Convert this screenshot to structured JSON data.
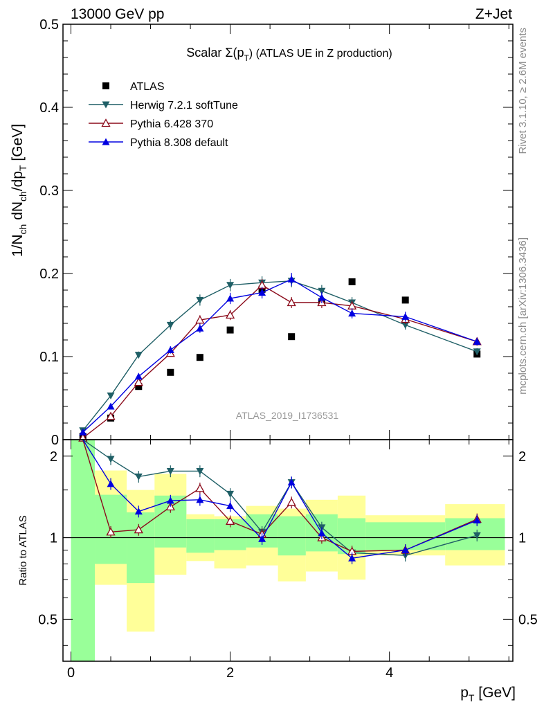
{
  "header": {
    "left": "13000 GeV pp",
    "right": "Z+Jet"
  },
  "side_labels": {
    "rivet": "Rivet 3.1.10, ≥ 2.6M events",
    "mcplots": "mcplots.cern.ch [arXiv:1306.3436]"
  },
  "analysis_id": "ATLAS_2019_I1736531",
  "colors": {
    "ATLAS": "#000000",
    "Herwig": "#1f5f66",
    "Pythia6": "#8b0a1a",
    "Pythia8": "#0000e0",
    "band_inner": "#99ff99",
    "band_outer": "#ffff99"
  },
  "chart_data": [
    {
      "type": "scatter",
      "panel": "main",
      "title_main": "Scalar Σ(p",
      "title_sub": "T",
      "title_tail": ") (ATLAS UE in Z production)",
      "ylabel": "1/N_ch dN_ch/dp_T [GeV]",
      "ylim": [
        0,
        0.5
      ],
      "yticks": [
        0,
        0.1,
        0.2,
        0.3,
        0.4,
        0.5
      ],
      "yticklabels": [
        "0",
        "0.1",
        "0.2",
        "0.3",
        "0.4",
        "0.5"
      ],
      "xlim": [
        -0.1,
        5.55
      ],
      "legend_position": "top-left",
      "series": [
        {
          "name": "ATLAS",
          "marker": "square",
          "x": [
            0.15,
            0.5,
            0.85,
            1.25,
            1.62,
            2.0,
            2.4,
            2.77,
            3.15,
            3.53,
            4.2,
            5.1
          ],
          "y": [
            0.004,
            0.026,
            0.064,
            0.081,
            0.099,
            0.132,
            0.181,
            0.124,
            0.166,
            0.19,
            0.168,
            0.103
          ]
        },
        {
          "name": "Herwig 7.2.1 softTune",
          "marker": "triangle-down",
          "x": [
            0.15,
            0.5,
            0.85,
            1.25,
            1.62,
            2.0,
            2.4,
            2.77,
            3.15,
            3.53,
            4.2,
            5.1
          ],
          "y": [
            0.011,
            0.053,
            0.102,
            0.138,
            0.168,
            0.186,
            0.189,
            0.191,
            0.179,
            0.165,
            0.138,
            0.106
          ]
        },
        {
          "name": "Pythia 6.428 370",
          "marker": "triangle-up-open",
          "x": [
            0.15,
            0.5,
            0.85,
            1.25,
            1.62,
            2.0,
            2.4,
            2.77,
            3.15,
            3.53,
            4.2,
            5.1
          ],
          "y": [
            0.002,
            0.028,
            0.069,
            0.104,
            0.144,
            0.15,
            0.186,
            0.165,
            0.165,
            0.161,
            0.145,
            0.118
          ]
        },
        {
          "name": "Pythia 8.308 default",
          "marker": "triangle-up",
          "x": [
            0.15,
            0.5,
            0.85,
            1.25,
            1.62,
            2.0,
            2.4,
            2.77,
            3.15,
            3.53,
            4.2,
            5.1
          ],
          "y": [
            0.009,
            0.04,
            0.076,
            0.108,
            0.134,
            0.17,
            0.177,
            0.193,
            0.171,
            0.152,
            0.148,
            0.118
          ]
        }
      ]
    },
    {
      "type": "line",
      "panel": "ratio",
      "ylabel": "Ratio to ATLAS",
      "xlabel_main": "p",
      "xlabel_sub": "T",
      "xlabel_tail": " [GeV]",
      "log_y": true,
      "ylim": [
        0.35,
        2.3
      ],
      "yticks": [
        0.5,
        1,
        2
      ],
      "yticklabels": [
        "0.5",
        "1",
        "2"
      ],
      "xlim": [
        -0.1,
        5.55
      ],
      "xticks": [
        0,
        2,
        4
      ],
      "xticklabels": [
        "0",
        "2",
        "4"
      ],
      "bands": {
        "edges": [
          0,
          0.3,
          0.7,
          1.05,
          1.45,
          1.8,
          2.2,
          2.6,
          2.95,
          3.35,
          3.7,
          4.7,
          5.45
        ],
        "outer_low": [
          0.3,
          0.67,
          0.45,
          0.73,
          0.82,
          0.77,
          0.79,
          0.69,
          0.75,
          0.7,
          0.86,
          0.79
        ],
        "outer_high": [
          3.0,
          1.77,
          1.5,
          1.72,
          1.22,
          1.2,
          1.31,
          1.28,
          1.38,
          1.43,
          1.21,
          1.33
        ],
        "inner_low": [
          0.3,
          0.8,
          0.68,
          0.92,
          0.88,
          0.9,
          0.92,
          0.86,
          0.89,
          0.87,
          0.9,
          0.9
        ],
        "inner_high": [
          3.0,
          1.44,
          1.24,
          1.43,
          1.17,
          1.17,
          1.22,
          1.2,
          1.22,
          1.18,
          1.14,
          1.18
        ]
      },
      "series": [
        {
          "name": "Herwig 7.2.1 softTune",
          "x": [
            0.5,
            0.85,
            1.25,
            1.62,
            2.0,
            2.4,
            2.77,
            3.15,
            3.53,
            4.2,
            5.1
          ],
          "y": [
            1.95,
            1.68,
            1.76,
            1.76,
            1.45,
            1.05,
            1.6,
            1.09,
            0.88,
            0.86,
            1.02
          ]
        },
        {
          "name": "Pythia 6.428 370",
          "x": [
            0.5,
            0.85,
            1.25,
            1.62,
            2.0,
            2.4,
            2.77,
            3.15,
            3.53,
            4.2,
            5.1
          ],
          "y": [
            1.05,
            1.07,
            1.3,
            1.52,
            1.15,
            1.03,
            1.35,
            1.0,
            0.89,
            0.9,
            1.17
          ]
        },
        {
          "name": "Pythia 8.308 default",
          "x": [
            0.5,
            0.85,
            1.25,
            1.62,
            2.0,
            2.4,
            2.77,
            3.15,
            3.53,
            4.2,
            5.1
          ],
          "y": [
            1.58,
            1.25,
            1.37,
            1.38,
            1.31,
            0.99,
            1.6,
            1.04,
            0.84,
            0.9,
            1.16
          ]
        }
      ]
    }
  ]
}
